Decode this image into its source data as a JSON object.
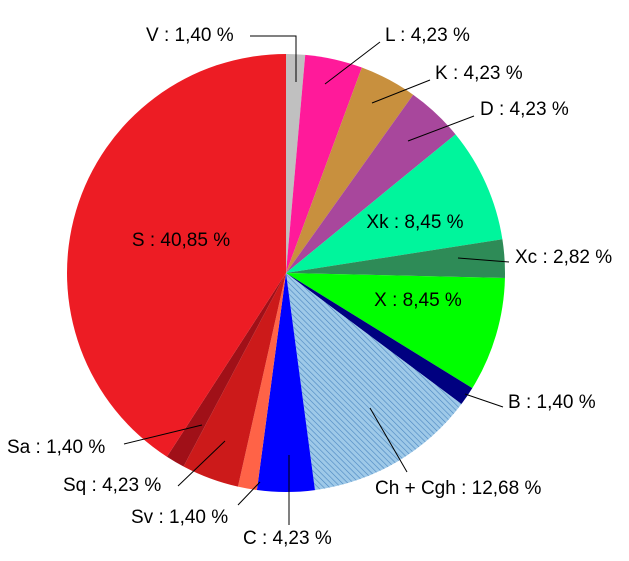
{
  "chart_data": {
    "type": "pie",
    "start": "12 o'clock",
    "direction": "clockwise",
    "labels": [
      "V",
      "L",
      "K",
      "D",
      "Xk",
      "Xc",
      "X",
      "B",
      "Ch + Cgh",
      "C",
      "Sv",
      "Sq",
      "Sa",
      "S"
    ],
    "values": [
      1.4,
      4.23,
      4.23,
      4.23,
      8.45,
      2.82,
      8.45,
      1.4,
      12.68,
      4.23,
      1.4,
      4.23,
      1.4,
      40.85
    ],
    "value_labels": [
      "1,40 %",
      "4,23 %",
      "4,23 %",
      "4,23 %",
      "8,45 %",
      "2,82 %",
      "8,45 %",
      "1,40 %",
      "12,68 %",
      "4,23 %",
      "1,40 %",
      "4,23 %",
      "1,40 %",
      "40,85 %"
    ],
    "colors": [
      "#c0c0c0",
      "#ff1a9a",
      "#c8903e",
      "#a8479c",
      "#00f59c",
      "#2e8b57",
      "#00ff00",
      "#000080",
      "#9ec9e8",
      "#0000ff",
      "#ff6347",
      "#cc1a1a",
      "#a01018",
      "#ed1c24"
    ],
    "hatched": [
      "Ch + Cgh"
    ],
    "separator": " : "
  }
}
